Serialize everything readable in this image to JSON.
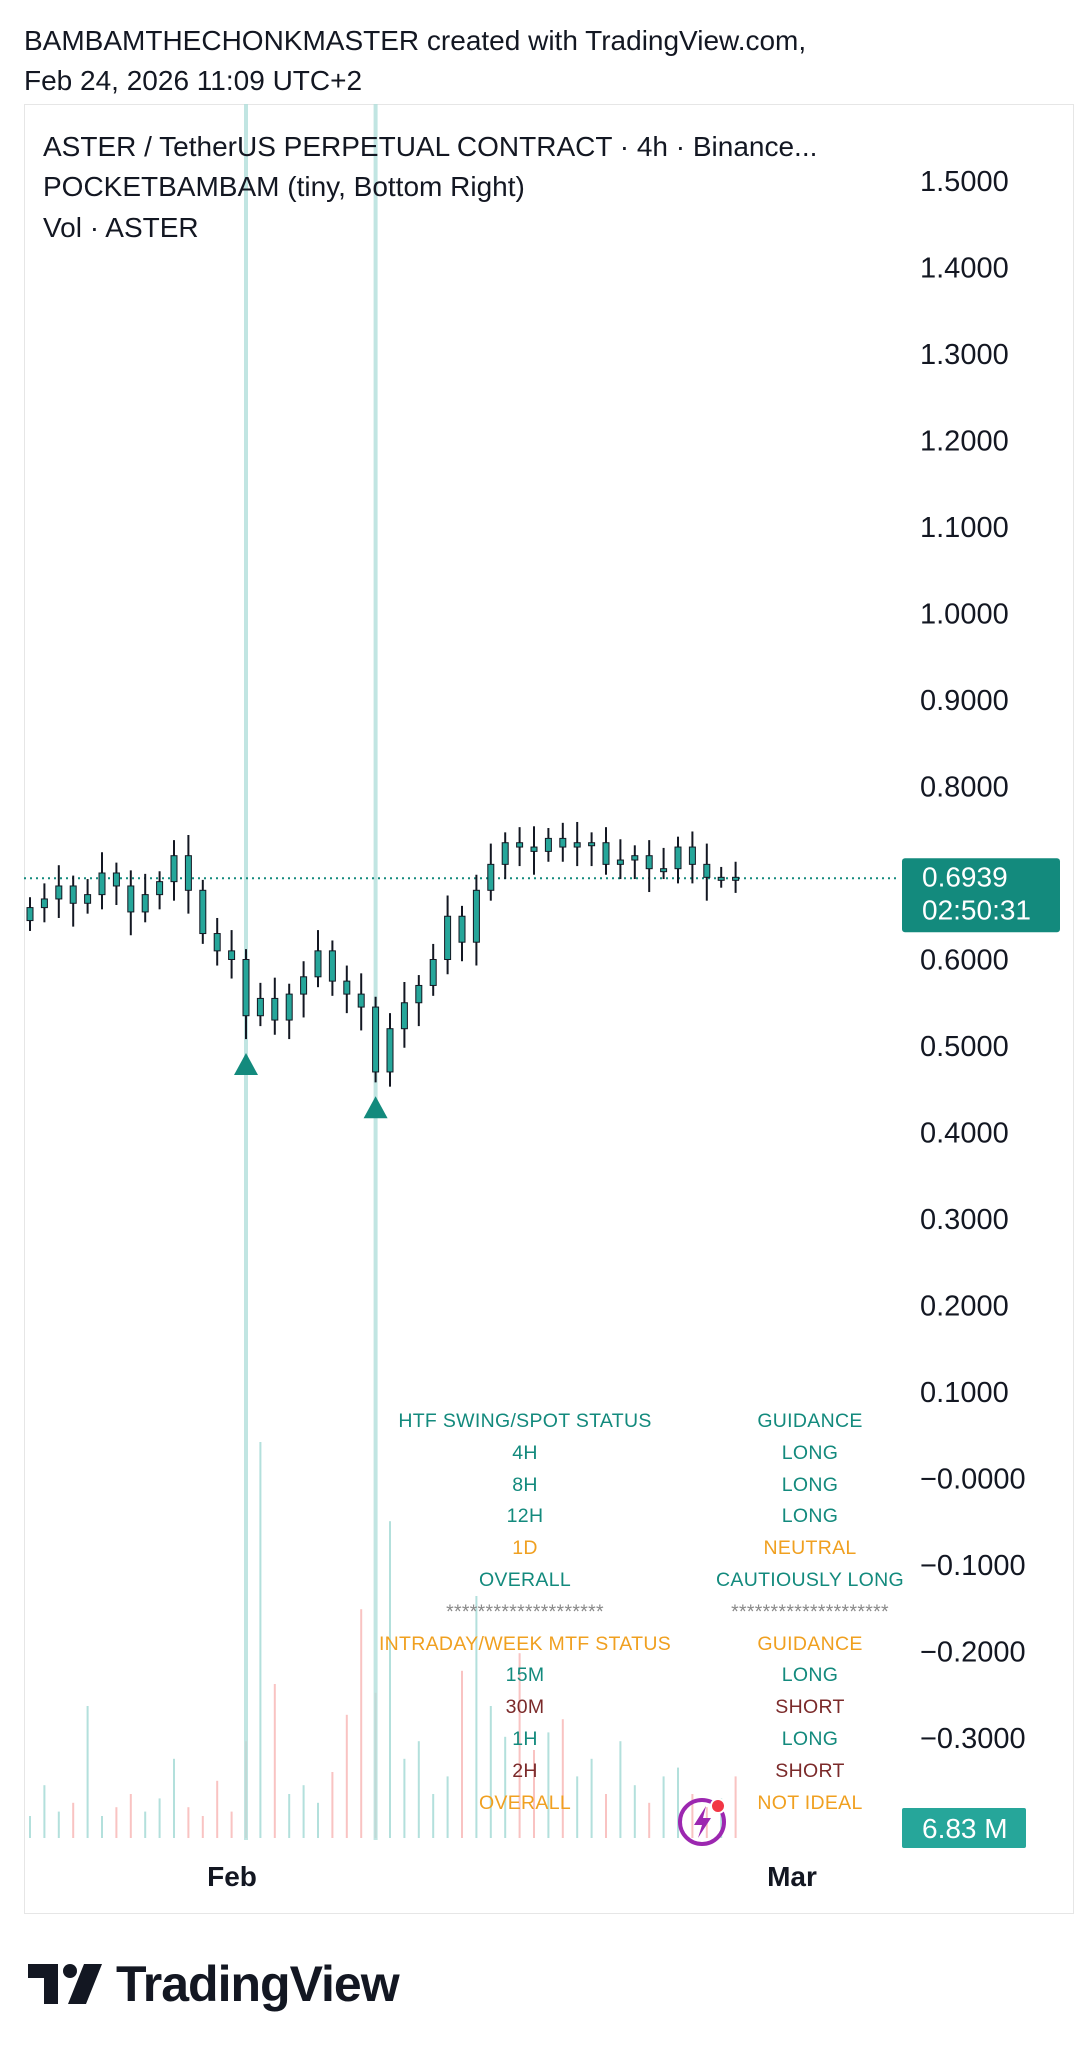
{
  "header": {
    "line1": "BAMBAMTHECHONKMASTER created with TradingView.com,",
    "line2": "Feb 24, 2026 11:09 UTC+2"
  },
  "legend": {
    "symbol": "ASTER / TetherUS PERPETUAL CONTRACT · 4h · Binance...",
    "indicator": "POCKETBAMBAM (tiny, Bottom Right)",
    "volume": "Vol · ASTER"
  },
  "chart_data": {
    "type": "candlestick",
    "price_axis": {
      "ticks": [
        "1.5000",
        "1.4000",
        "1.3000",
        "1.2000",
        "1.1000",
        "1.0000",
        "0.9000",
        "0.8000",
        "0.6000",
        "0.5000",
        "0.4000",
        "0.3000",
        "0.2000",
        "0.1000",
        "−0.0000",
        "−0.1000",
        "−0.2000",
        "−0.3000"
      ],
      "tick_values": [
        1.5,
        1.4,
        1.3,
        1.2,
        1.1,
        1.0,
        0.9,
        0.8,
        0.6,
        0.5,
        0.4,
        0.3,
        0.2,
        0.1,
        0.0,
        -0.1,
        -0.2,
        -0.3
      ],
      "range": [
        -0.4,
        1.5
      ]
    },
    "x_axis": {
      "labels": [
        "Feb",
        "Mar"
      ]
    },
    "last_price": {
      "value": "0.6939",
      "countdown": "02:50:31",
      "level": 0.6939
    },
    "last_volume": {
      "value": "6.83 M"
    },
    "price_path": [
      0.66,
      0.67,
      0.685,
      0.665,
      0.675,
      0.7,
      0.685,
      0.655,
      0.675,
      0.69,
      0.72,
      0.68,
      0.63,
      0.61,
      0.6,
      0.535,
      0.555,
      0.53,
      0.56,
      0.58,
      0.61,
      0.575,
      0.56,
      0.545,
      0.47,
      0.52,
      0.55,
      0.57,
      0.6,
      0.65,
      0.62,
      0.68,
      0.71,
      0.735,
      0.73,
      0.725,
      0.74,
      0.73,
      0.735,
      0.735,
      0.71,
      0.715,
      0.72,
      0.705,
      0.705,
      0.73,
      0.71,
      0.695,
      0.695,
      0.694
    ],
    "price_path_start": 0.645,
    "markers": [
      {
        "label": "signal",
        "candle_index": 15,
        "price": 0.478
      },
      {
        "label": "signal",
        "candle_index": 24,
        "price": 0.428
      }
    ],
    "volume_heights": [
      0.05,
      0.12,
      0.06,
      0.08,
      0.3,
      0.05,
      0.07,
      0.1,
      0.06,
      0.09,
      0.18,
      0.07,
      0.05,
      0.13,
      0.06,
      0.22,
      0.9,
      0.35,
      0.1,
      0.12,
      0.08,
      0.15,
      0.28,
      0.52,
      0.33,
      0.72,
      0.18,
      0.22,
      0.1,
      0.14,
      0.38,
      0.55,
      0.3,
      0.23,
      0.42,
      0.2,
      0.24,
      0.27,
      0.14,
      0.18,
      0.1,
      0.22,
      0.12,
      0.08,
      0.14,
      0.16,
      0.1,
      0.07,
      0.09,
      0.14
    ],
    "colors": {
      "up": "#26a69a",
      "down": "#ef5350",
      "candle_body": "#26a69a",
      "wick": "#131722",
      "highlight_line": "#b2dfdb"
    }
  },
  "status_table": {
    "rows": [
      {
        "label": "HTF SWING/SPOT STATUS",
        "value": "GUIDANCE",
        "label_color": "#138a7d",
        "value_color": "#138a7d"
      },
      {
        "label": "4H",
        "value": "LONG",
        "label_color": "#138a7d",
        "value_color": "#138a7d"
      },
      {
        "label": "8H",
        "value": "LONG",
        "label_color": "#138a7d",
        "value_color": "#138a7d"
      },
      {
        "label": "12H",
        "value": "LONG",
        "label_color": "#138a7d",
        "value_color": "#138a7d"
      },
      {
        "label": "1D",
        "value": "NEUTRAL",
        "label_color": "#f0a020",
        "value_color": "#f0a020"
      },
      {
        "label": "OVERALL",
        "value": "CAUTIOUSLY LONG",
        "label_color": "#138a7d",
        "value_color": "#138a7d"
      },
      {
        "label": "********************",
        "value": "********************",
        "label_color": "#8a8a8a",
        "value_color": "#8a8a8a"
      },
      {
        "label": "INTRADAY/WEEK MTF STATUS",
        "value": "GUIDANCE",
        "label_color": "#f0a020",
        "value_color": "#f0a020"
      },
      {
        "label": "15M",
        "value": "LONG",
        "label_color": "#138a7d",
        "value_color": "#138a7d"
      },
      {
        "label": "30M",
        "value": "SHORT",
        "label_color": "#7b2a2a",
        "value_color": "#7b2a2a"
      },
      {
        "label": "1H",
        "value": "LONG",
        "label_color": "#138a7d",
        "value_color": "#138a7d"
      },
      {
        "label": "2H",
        "value": "SHORT",
        "label_color": "#7b2a2a",
        "value_color": "#7b2a2a"
      },
      {
        "label": "OVERALL",
        "value": "NOT IDEAL",
        "label_color": "#f0a020",
        "value_color": "#f0a020"
      }
    ]
  },
  "branding": {
    "name": "TradingView",
    "logo_icon": "tradingview-logo-icon"
  }
}
